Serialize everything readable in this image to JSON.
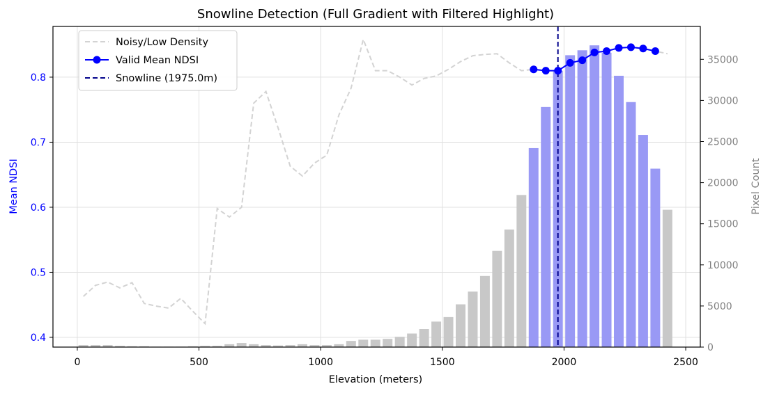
{
  "chart_data": {
    "type": "bar",
    "title": "Snowline Detection (Full Gradient with Filtered Highlight)",
    "xlabel": "Elevation (meters)",
    "ylabel_left": "Mean NDSI",
    "ylabel_right": "Pixel Count",
    "xlim": [
      -100,
      2560
    ],
    "ylim_left": [
      0.385,
      0.878
    ],
    "ylim_right": [
      0,
      39000
    ],
    "xticks": [
      0,
      500,
      1000,
      1500,
      2000,
      2500
    ],
    "yticks_left": [
      0.4,
      0.5,
      0.6,
      0.7,
      0.8
    ],
    "yticks_right": [
      0,
      5000,
      10000,
      15000,
      20000,
      25000,
      30000,
      35000
    ],
    "grid": true,
    "legend_position": "upper-left",
    "colors": {
      "left_axis": "#0000ff",
      "right_axis": "#808080",
      "valid_bar": "#9999f5",
      "noisy_bar": "#c8c8c8",
      "noisy_line": "#d3d3d3",
      "valid_line": "#0000ff",
      "snowline": "#00008b",
      "grid": "#e0e0e0"
    },
    "bar_width": 40,
    "valid_range": [
      1875,
      2375
    ],
    "bars": {
      "x": [
        25,
        75,
        125,
        175,
        225,
        275,
        325,
        375,
        425,
        475,
        525,
        575,
        625,
        675,
        725,
        775,
        825,
        875,
        925,
        975,
        1025,
        1075,
        1125,
        1175,
        1225,
        1275,
        1325,
        1375,
        1425,
        1475,
        1525,
        1575,
        1625,
        1675,
        1725,
        1775,
        1825,
        1875,
        1925,
        1975,
        2025,
        2075,
        2125,
        2175,
        2225,
        2275,
        2325,
        2375,
        2425
      ],
      "counts": [
        250,
        250,
        250,
        150,
        100,
        100,
        50,
        50,
        50,
        100,
        150,
        150,
        350,
        500,
        350,
        250,
        200,
        250,
        350,
        250,
        250,
        350,
        750,
        900,
        900,
        1000,
        1250,
        1650,
        2200,
        3100,
        3650,
        5200,
        6750,
        8650,
        11700,
        14300,
        18500,
        24200,
        29200,
        33600,
        35500,
        36100,
        36700,
        35800,
        33000,
        29800,
        25800,
        21700,
        16700
      ]
    },
    "series": [
      {
        "name": "Noisy/Low Density",
        "style": "dashed",
        "x": [
          25,
          75,
          125,
          175,
          225,
          275,
          325,
          375,
          425,
          475,
          525,
          575,
          625,
          675,
          725,
          775,
          825,
          875,
          925,
          975,
          1025,
          1075,
          1125,
          1175,
          1225,
          1275,
          1325,
          1375,
          1425,
          1475,
          1525,
          1575,
          1625,
          1675,
          1725,
          1775,
          1825,
          1875,
          1925,
          1975,
          2025,
          2075,
          2125,
          2175,
          2225,
          2275,
          2325,
          2375,
          2425
        ],
        "values": [
          0.463,
          0.48,
          0.485,
          0.476,
          0.484,
          0.452,
          0.448,
          0.445,
          0.46,
          0.44,
          0.421,
          0.598,
          0.585,
          0.6,
          0.76,
          0.778,
          0.722,
          0.663,
          0.648,
          0.668,
          0.68,
          0.742,
          0.783,
          0.858,
          0.81,
          0.81,
          0.8,
          0.788,
          0.798,
          0.802,
          0.812,
          0.824,
          0.833,
          0.835,
          0.836,
          0.822,
          0.81,
          0.812,
          0.81,
          0.81,
          0.822,
          0.826,
          0.838,
          0.84,
          0.845,
          0.846,
          0.844,
          0.84,
          0.836
        ]
      },
      {
        "name": "Valid Mean NDSI",
        "style": "solid-marker",
        "x": [
          1875,
          1925,
          1975,
          2025,
          2075,
          2125,
          2175,
          2225,
          2275,
          2325,
          2375
        ],
        "values": [
          0.812,
          0.81,
          0.81,
          0.822,
          0.826,
          0.838,
          0.84,
          0.845,
          0.846,
          0.844,
          0.84
        ]
      }
    ],
    "snowline": {
      "name": "Snowline (1975.0m)",
      "x": 1975
    }
  }
}
